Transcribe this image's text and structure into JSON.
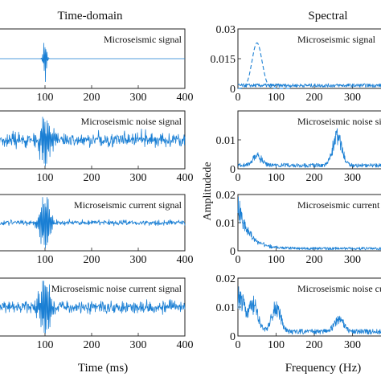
{
  "header": {
    "left_title": "Time-domain",
    "right_title": "Spectral"
  },
  "axes_text": {
    "time_xlabel": "Time (ms)",
    "freq_xlabel": "Frequency (Hz)",
    "freq_ylabel": "Amplitudede"
  },
  "colors": {
    "signal": "#1a7fd4",
    "axes": "#222222"
  },
  "chart_data": [
    {
      "type": "line",
      "domain": "time",
      "label": "Microseismic signal",
      "xlim": [
        0,
        400
      ],
      "xticks": [
        "100",
        "200",
        "300",
        "400"
      ],
      "waveform": "single burst near 100 ms, flat elsewhere",
      "burst_center": 100,
      "burst_amplitude": 1.0,
      "noise_amplitude": 0.0
    },
    {
      "type": "line",
      "domain": "spectral",
      "label": "Microseismic signal",
      "xlim": [
        0,
        400
      ],
      "ylim": [
        0,
        0.03
      ],
      "xticks": [
        "0",
        "100",
        "200",
        "300"
      ],
      "yticks": [
        "0",
        "0.015",
        "0.03"
      ],
      "dashed_peak_center": 50,
      "dashed_peak_value": 0.023,
      "noise_floor": 0.0015
    },
    {
      "type": "line",
      "domain": "time",
      "label": "Microseismic noise signal",
      "xlim": [
        0,
        400
      ],
      "xticks": [
        "100",
        "200",
        "300",
        "400"
      ],
      "waveform": "dense noise with burst near 100 ms",
      "burst_center": 100,
      "burst_amplitude": 1.0,
      "noise_amplitude": 0.5
    },
    {
      "type": "line",
      "domain": "spectral",
      "label": "Microseismic noise signal",
      "xlim": [
        0,
        400
      ],
      "ylim": [
        0,
        0.02
      ],
      "xticks": [
        "0",
        "100",
        "200",
        "300"
      ],
      "yticks": [
        "0",
        "0.01"
      ],
      "peaks": [
        {
          "x": 50,
          "y": 0.004
        },
        {
          "x": 260,
          "y": 0.013
        }
      ],
      "noise_floor": 0.0012
    },
    {
      "type": "line",
      "domain": "time",
      "label": "Microseismic current signal",
      "xlim": [
        0,
        400
      ],
      "xticks": [
        "100",
        "200",
        "300",
        "400"
      ],
      "waveform": "low-level noise with burst near 100 ms",
      "burst_center": 100,
      "burst_amplitude": 1.0,
      "noise_amplitude": 0.2
    },
    {
      "type": "line",
      "domain": "spectral",
      "label": "Microseismic current signal",
      "xlim": [
        0,
        400
      ],
      "ylim": [
        0,
        0.02
      ],
      "xticks": [
        "0",
        "100",
        "200",
        "300"
      ],
      "yticks": [
        "0",
        "0.01",
        "0.02"
      ],
      "decay_start": 0.018,
      "noise_floor": 0.0008
    },
    {
      "type": "line",
      "domain": "time",
      "label": "Microseismic noise current signal",
      "xlim": [
        0,
        400
      ],
      "xticks": [
        "100",
        "200",
        "300",
        "400"
      ],
      "waveform": "dense noise with burst near 100 ms",
      "burst_center": 100,
      "burst_amplitude": 1.0,
      "noise_amplitude": 0.45
    },
    {
      "type": "line",
      "domain": "spectral",
      "label": "Microseismic noise current signal",
      "xlim": [
        0,
        400
      ],
      "ylim": [
        0,
        0.02
      ],
      "xticks": [
        "0",
        "100",
        "200",
        "300"
      ],
      "yticks": [
        "0",
        "0.01",
        "0.02"
      ],
      "peaks": [
        {
          "x": 5,
          "y": 0.016
        },
        {
          "x": 40,
          "y": 0.012
        },
        {
          "x": 100,
          "y": 0.011
        },
        {
          "x": 265,
          "y": 0.006
        }
      ],
      "noise_floor": 0.0015
    }
  ]
}
